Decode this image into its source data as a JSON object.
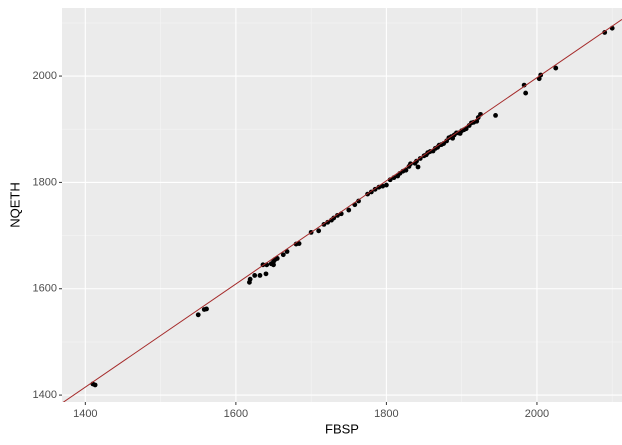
{
  "chart_data": {
    "type": "scatter",
    "x_label": "FBSP",
    "y_label": "NQETH",
    "x": [
      1410,
      1413,
      1550,
      1558,
      1561,
      1618,
      1619,
      1625,
      1632,
      1636,
      1640,
      1641,
      1647,
      1650,
      1652,
      1655,
      1650,
      1663,
      1668,
      1680,
      1684,
      1700,
      1710,
      1717,
      1722,
      1727,
      1730,
      1735,
      1740,
      1750,
      1758,
      1763,
      1775,
      1780,
      1785,
      1790,
      1795,
      1800,
      1805,
      1810,
      1815,
      1818,
      1822,
      1826,
      1830,
      1832,
      1838,
      1840,
      1842,
      1845,
      1850,
      1853,
      1855,
      1858,
      1862,
      1865,
      1868,
      1870,
      1873,
      1876,
      1880,
      1883,
      1886,
      1888,
      1890,
      1893,
      1896,
      1898,
      1900,
      1903,
      1906,
      1910,
      1913,
      1916,
      1920,
      1922,
      1925,
      1945,
      1983,
      1985,
      2003,
      2005,
      2025,
      2090,
      2100
    ],
    "y": [
      1421,
      1419,
      1551,
      1561,
      1562,
      1612,
      1618,
      1625,
      1625,
      1645,
      1628,
      1645,
      1647,
      1651,
      1655,
      1657,
      1645,
      1664,
      1670,
      1684,
      1685,
      1706,
      1709,
      1721,
      1725,
      1729,
      1733,
      1738,
      1741,
      1748,
      1758,
      1765,
      1778,
      1782,
      1787,
      1791,
      1793,
      1795,
      1805,
      1809,
      1812,
      1817,
      1821,
      1823,
      1830,
      1835,
      1836,
      1840,
      1829,
      1845,
      1850,
      1852,
      1856,
      1858,
      1859,
      1864,
      1866,
      1870,
      1871,
      1873,
      1878,
      1884,
      1886,
      1883,
      1889,
      1893,
      1893,
      1892,
      1897,
      1899,
      1901,
      1907,
      1912,
      1913,
      1915,
      1922,
      1928,
      1926,
      1983,
      1968,
      1995,
      2002,
      2015,
      2082,
      2090
    ],
    "color": "#000000",
    "trend_line": {
      "slope": 0.97,
      "intercept": 57,
      "color": "#a52a2a"
    },
    "xlim": [
      1369,
      2113
    ],
    "ylim": [
      1387,
      2128
    ],
    "xticks": [
      1400,
      1600,
      1800,
      2000
    ],
    "yticks": [
      1400,
      1600,
      1800,
      2000
    ],
    "grid": true
  }
}
